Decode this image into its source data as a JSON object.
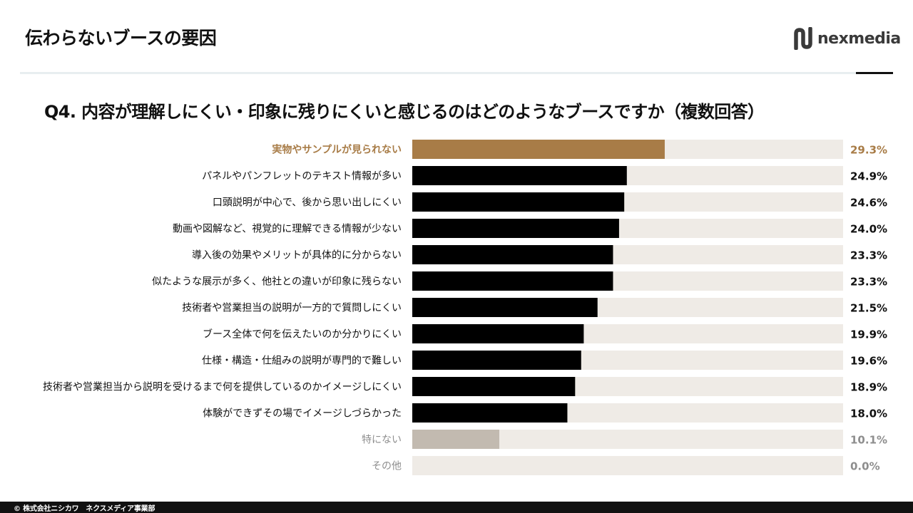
{
  "slide": {
    "title": "伝わらないブースの要因",
    "question": "Q4. 内容が理解しにくい・印象に残りにくいと感じるのはどのようなブースですか（複数回答）",
    "footer": "© 株式会社ニシカワ　ネクスメディア事業部"
  },
  "brand": {
    "logo_text": "nexmedia",
    "logo_icon": "nexmedia-logo-icon"
  },
  "colors": {
    "highlight": "#a87c47",
    "bar": "#000000",
    "muted_bar": "#c2bab0",
    "track": "#efebe6",
    "muted_text": "#8e8e8e",
    "text": "#111111"
  },
  "chart_data": {
    "type": "bar",
    "orientation": "horizontal",
    "title": "Q4. 内容が理解しにくい・印象に残りにくいと感じるのはどのようなブースですか（複数回答）",
    "xlim": [
      0,
      50
    ],
    "categories": [
      "実物やサンプルが見られない",
      "パネルやパンフレットのテキスト情報が多い",
      "口頭説明が中心で、後から思い出しにくい",
      "動画や図解など、視覚的に理解できる情報が少ない",
      "導入後の効果やメリットが具体的に分からない",
      "似たような展示が多く、他社との違いが印象に残らない",
      "技術者や営業担当の説明が一方的で質問しにくい",
      "ブース全体で何を伝えたいのか分かりにくい",
      "仕様・構造・仕組みの説明が専門的で難しい",
      "技術者や営業担当から説明を受けるまで何を提供しているのかイメージしにくい",
      "体験ができずその場でイメージしづらかった",
      "特にない",
      "その他"
    ],
    "values": [
      29.3,
      24.9,
      24.6,
      24.0,
      23.3,
      23.3,
      21.5,
      19.9,
      19.6,
      18.9,
      18.0,
      10.1,
      0.0
    ],
    "value_labels": [
      "29.3%",
      "24.9%",
      "24.6%",
      "24.0%",
      "23.3%",
      "23.3%",
      "21.5%",
      "19.9%",
      "19.6%",
      "18.9%",
      "18.0%",
      "10.1%",
      "0.0%"
    ],
    "styles": [
      "highlight",
      "normal",
      "normal",
      "normal",
      "normal",
      "normal",
      "normal",
      "normal",
      "normal",
      "normal",
      "normal",
      "muted",
      "muted"
    ],
    "grid": false,
    "legend": "none"
  }
}
